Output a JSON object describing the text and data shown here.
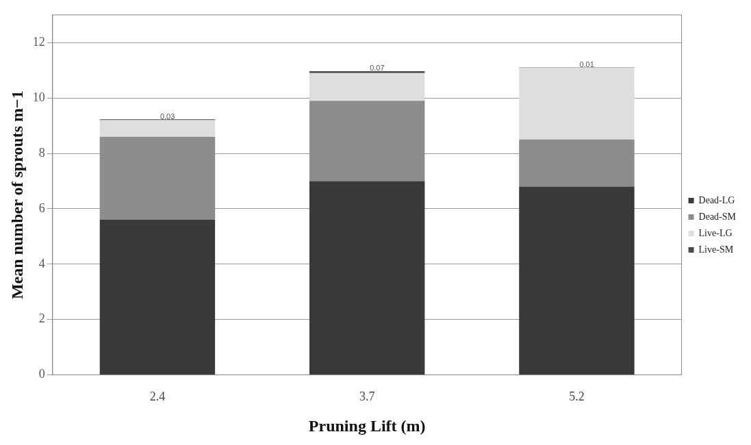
{
  "chart_data": {
    "type": "bar",
    "stacked": true,
    "xlabel": "Pruning Lift (m)",
    "ylabel": "Mean number of sprouts m−1",
    "categories": [
      "2.4",
      "3.7",
      "5.2"
    ],
    "series": [
      {
        "name": "Dead-LG",
        "color": "#3a3a3a",
        "values": [
          5.6,
          7.0,
          6.8
        ]
      },
      {
        "name": "Dead-SM",
        "color": "#8c8c8c",
        "values": [
          3.0,
          2.9,
          1.7
        ]
      },
      {
        "name": "Live-LG",
        "color": "#dedede",
        "values": [
          0.6,
          1.0,
          2.6
        ]
      },
      {
        "name": "Live-SM",
        "color": "#4a4a4a",
        "values": [
          0.03,
          0.07,
          0.01
        ],
        "value_labels": [
          "0.03",
          "0.07",
          "0.01"
        ]
      }
    ],
    "ylim": [
      0,
      13
    ],
    "yticks": [
      0,
      2,
      4,
      6,
      8,
      10,
      12
    ],
    "grid": "y",
    "legend": "right"
  }
}
